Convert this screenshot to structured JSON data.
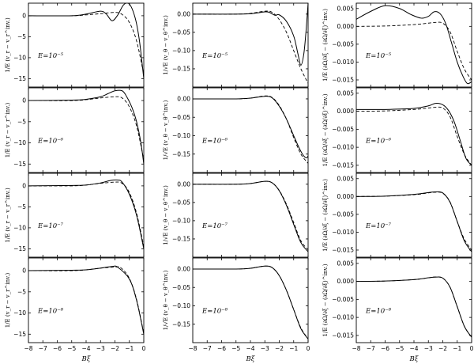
{
  "chart_data": {
    "type": "line",
    "layout": "4 rows x 3 columns of line plots",
    "x_axis": {
      "label": "Bξ",
      "range": [
        -8,
        0
      ],
      "ticks": [
        -8,
        -7,
        -6,
        -5,
        -4,
        -3,
        -2,
        -1,
        0
      ]
    },
    "line_styles": {
      "model": "solid",
      "reference": "dashed"
    },
    "rows": [
      {
        "annotation": "E=10⁻⁵"
      },
      {
        "annotation": "E=10⁻⁶"
      },
      {
        "annotation": "E=10⁻⁷"
      },
      {
        "annotation": "E=10⁻⁸"
      }
    ],
    "columns": [
      {
        "ylabel": "1/E (v_r − v_r^inv.)",
        "ylim": [
          -17,
          3
        ],
        "yticks": [
          0,
          -5,
          -10,
          -15
        ],
        "panels": [
          {
            "solid": {
              "x": [
                -8,
                -5,
                -4,
                -3,
                -2.6,
                -2.2,
                -1.8,
                -1.4,
                -1,
                -0.6,
                -0.3,
                0
              ],
              "y": [
                0,
                0,
                0.4,
                1.1,
                0.4,
                -1.2,
                0.2,
                2.6,
                2.8,
                -0.5,
                -6,
                -15
              ]
            },
            "dashed": {
              "x": [
                -8,
                -5,
                -4,
                -3,
                -2,
                -1.5,
                -1,
                -0.5,
                0
              ],
              "y": [
                0,
                0,
                0.2,
                0.5,
                0.8,
                0.3,
                -1.6,
                -6,
                -14
              ]
            }
          },
          {
            "solid": {
              "x": [
                -8,
                -5,
                -4,
                -3,
                -2.5,
                -2,
                -1.5,
                -1.2,
                -0.8,
                -0.5,
                -0.2,
                0
              ],
              "y": [
                0,
                0.1,
                0.3,
                0.9,
                1.6,
                2.3,
                2.3,
                1,
                -1.8,
                -5,
                -10,
                -15
              ]
            },
            "dashed": {
              "x": [
                -8,
                -5,
                -4,
                -3,
                -2,
                -1.5,
                -1,
                -0.5,
                0
              ],
              "y": [
                0,
                0,
                0.2,
                0.6,
                0.9,
                0.6,
                -1.5,
                -6,
                -14
              ]
            }
          },
          {
            "solid": {
              "x": [
                -8,
                -5,
                -4,
                -3,
                -2.3,
                -1.8,
                -1.5,
                -1,
                -0.5,
                0
              ],
              "y": [
                0,
                0.1,
                0.2,
                0.7,
                1.3,
                1.4,
                0.9,
                -2,
                -7,
                -15
              ]
            },
            "dashed": {
              "x": [
                -8,
                -5,
                -4,
                -3,
                -2,
                -1.5,
                -1,
                -0.5,
                0
              ],
              "y": [
                0,
                0,
                0.2,
                0.6,
                0.9,
                0.6,
                -1.6,
                -6.5,
                -14.5
              ]
            }
          },
          {
            "solid": {
              "x": [
                -8,
                -5,
                -4,
                -3,
                -2.2,
                -1.8,
                -1,
                -0.5,
                0
              ],
              "y": [
                0,
                0.1,
                0.2,
                0.6,
                1,
                0.8,
                -2,
                -7,
                -15
              ]
            },
            "dashed": {
              "x": [
                -8,
                -5,
                -4,
                -3,
                -2,
                -1.6,
                -1,
                -0.5,
                0
              ],
              "y": [
                0,
                0,
                0.2,
                0.6,
                0.85,
                0.7,
                -1.8,
                -6.8,
                -14.8
              ]
            }
          }
        ]
      },
      {
        "ylabel": "1/√E (v_θ − v_θ^inv.)",
        "ylim": [
          -0.2,
          0.03
        ],
        "yticks": [
          0,
          -0.05,
          -0.1,
          -0.15
        ],
        "panels": [
          {
            "solid": {
              "x": [
                -8,
                -5,
                -4,
                -3,
                -2.7,
                -2.3,
                -2,
                -1.5,
                -1,
                -0.7,
                -0.5,
                -0.3,
                -0.15,
                0
              ],
              "y": [
                0,
                0,
                0.001,
                0.006,
                0.005,
                -0.003,
                -0.002,
                -0.02,
                -0.06,
                -0.11,
                -0.14,
                -0.11,
                -0.05,
                0.03
              ]
            },
            "dashed": {
              "x": [
                -8,
                -5,
                -4,
                -3,
                -2.5,
                -2,
                -1.5,
                -1,
                -0.5,
                0
              ],
              "y": [
                0,
                0,
                0.002,
                0.008,
                0.005,
                -0.015,
                -0.05,
                -0.1,
                -0.15,
                -0.19
              ]
            }
          },
          {
            "solid": {
              "x": [
                -8,
                -5,
                -4,
                -3,
                -2.5,
                -2,
                -1.5,
                -1,
                -0.6,
                -0.3,
                -0.1,
                0
              ],
              "y": [
                0,
                0,
                0.002,
                0.007,
                0.003,
                -0.02,
                -0.055,
                -0.1,
                -0.135,
                -0.155,
                -0.16,
                -0.155
              ]
            },
            "dashed": {
              "x": [
                -8,
                -5,
                -4,
                -3,
                -2.5,
                -2,
                -1.5,
                -1,
                -0.5,
                0
              ],
              "y": [
                0,
                0,
                0.002,
                0.008,
                0.004,
                -0.018,
                -0.055,
                -0.105,
                -0.15,
                -0.175
              ]
            }
          },
          {
            "solid": {
              "x": [
                -8,
                -5,
                -4,
                -3,
                -2.5,
                -2,
                -1.5,
                -1,
                -0.5,
                0
              ],
              "y": [
                0,
                0,
                0.002,
                0.008,
                0.004,
                -0.018,
                -0.058,
                -0.11,
                -0.16,
                -0.185
              ]
            },
            "dashed": {
              "x": [
                -8,
                -5,
                -4,
                -3,
                -2.5,
                -2,
                -1.5,
                -1,
                -0.5,
                0
              ],
              "y": [
                0,
                0,
                0.002,
                0.008,
                0.004,
                -0.017,
                -0.055,
                -0.105,
                -0.155,
                -0.18
              ]
            }
          },
          {
            "solid": {
              "x": [
                -8,
                -5,
                -4,
                -3,
                -2.5,
                -2,
                -1.5,
                -1,
                -0.5,
                0
              ],
              "y": [
                0,
                0,
                0.002,
                0.008,
                0.004,
                -0.018,
                -0.058,
                -0.11,
                -0.162,
                -0.19
              ]
            },
            "dashed": {
              "x": [
                -8,
                -5,
                -4,
                -3,
                -2.5,
                -2,
                -1.5,
                -1,
                -0.5,
                0
              ],
              "y": [
                0,
                0,
                0.002,
                0.008,
                0.004,
                -0.018,
                -0.058,
                -0.11,
                -0.16,
                -0.19
              ]
            }
          }
        ]
      },
      {
        "ylabel": "1/E (∂Ω/∂ξ − (∂Ω/∂ξ)^inv.)",
        "ylim": [
          -0.017,
          0.0065
        ],
        "yticks": [
          0.005,
          0,
          -0.005,
          -0.01,
          -0.015
        ],
        "panels": [
          {
            "solid": {
              "x": [
                -8,
                -7,
                -6,
                -5,
                -4.2,
                -3.5,
                -3,
                -2.6,
                -2.2,
                -1.8,
                -1.4,
                -1,
                -0.6,
                -0.3,
                0
              ],
              "y": [
                0.002,
                0.0042,
                0.0058,
                0.005,
                0.0033,
                0.0023,
                0.0028,
                0.0041,
                0.0036,
                0.0008,
                -0.0045,
                -0.01,
                -0.014,
                -0.016,
                -0.0155
              ]
            },
            "dashed": {
              "x": [
                -8,
                -6,
                -4,
                -3,
                -2.5,
                -2,
                -1.5,
                -1,
                -0.5,
                0
              ],
              "y": [
                0,
                0.0001,
                0.0005,
                0.0009,
                0.0011,
                0.0009,
                -0.0015,
                -0.007,
                -0.012,
                -0.015
              ]
            }
          },
          {
            "solid": {
              "x": [
                -8,
                -6,
                -4,
                -3,
                -2.5,
                -2,
                -1.6,
                -1.2,
                -0.8,
                -0.4,
                0
              ],
              "y": [
                0.0005,
                0.0005,
                0.0008,
                0.0015,
                0.0022,
                0.0018,
                0.0002,
                -0.003,
                -0.008,
                -0.013,
                -0.015
              ]
            },
            "dashed": {
              "x": [
                -8,
                -6,
                -4,
                -3,
                -2.5,
                -2,
                -1.5,
                -1,
                -0.5,
                0
              ],
              "y": [
                0,
                0.0001,
                0.0005,
                0.0009,
                0.0011,
                0.0009,
                -0.0015,
                -0.007,
                -0.012,
                -0.015
              ]
            }
          },
          {
            "solid": {
              "x": [
                -8,
                -6,
                -4,
                -3,
                -2.5,
                -2,
                -1.5,
                -1,
                -0.5,
                0
              ],
              "y": [
                0,
                0.0001,
                0.0006,
                0.0011,
                0.0013,
                0.001,
                -0.0016,
                -0.007,
                -0.0125,
                -0.0155
              ]
            },
            "dashed": {
              "x": [
                -8,
                -6,
                -4,
                -3,
                -2.5,
                -2,
                -1.5,
                -1,
                -0.5,
                0
              ],
              "y": [
                0,
                0.0001,
                0.0005,
                0.001,
                0.0012,
                0.0009,
                -0.0015,
                -0.007,
                -0.012,
                -0.015
              ]
            }
          },
          {
            "solid": {
              "x": [
                -8,
                -6,
                -4,
                -3,
                -2.5,
                -2,
                -1.5,
                -1,
                -0.5,
                0
              ],
              "y": [
                0,
                0.0001,
                0.0005,
                0.001,
                0.0012,
                0.0009,
                -0.0016,
                -0.007,
                -0.0125,
                -0.0155
              ]
            },
            "dashed": {
              "x": [
                -8,
                -6,
                -4,
                -3,
                -2.5,
                -2,
                -1.5,
                -1,
                -0.5,
                0
              ],
              "y": [
                0,
                0.0001,
                0.0005,
                0.001,
                0.0012,
                0.0009,
                -0.0016,
                -0.007,
                -0.0125,
                -0.0155
              ]
            }
          }
        ]
      }
    ]
  }
}
